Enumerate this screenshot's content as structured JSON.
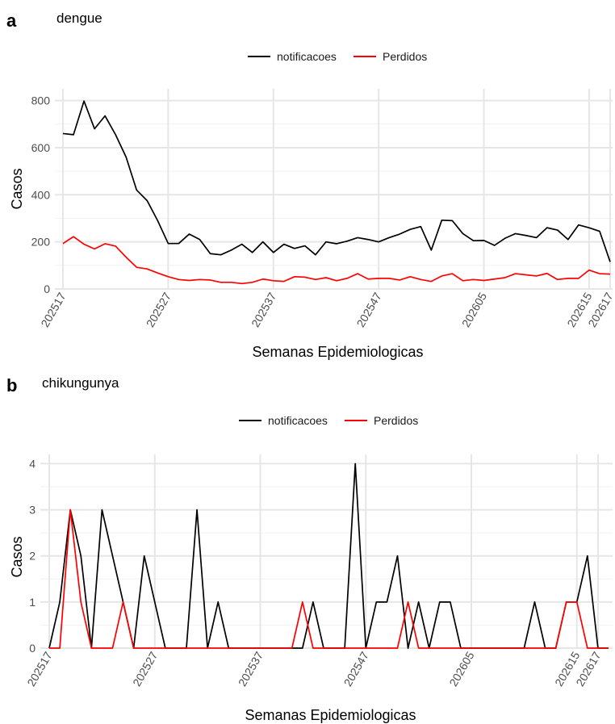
{
  "chart_data": [
    {
      "panel_letter": "a",
      "title": "dengue",
      "type": "line",
      "xlabel": "Semanas Epidemiologicas",
      "ylabel": "Casos",
      "ylim": [
        0,
        850
      ],
      "y_ticks": [
        0,
        200,
        400,
        600,
        800
      ],
      "x_ticks": [
        "202517",
        "202527",
        "202537",
        "202547",
        "202605",
        "202615",
        "202617"
      ],
      "grid": true,
      "legend_position": "top",
      "series": [
        {
          "name": "notificacoes",
          "color": "#000000",
          "values": [
            660,
            655,
            798,
            680,
            735,
            655,
            560,
            420,
            375,
            290,
            193,
            193,
            233,
            210,
            150,
            145,
            165,
            190,
            155,
            200,
            155,
            190,
            172,
            183,
            145,
            200,
            192,
            203,
            218,
            210,
            200,
            218,
            233,
            253,
            265,
            165,
            292,
            290,
            235,
            205,
            206,
            185,
            215,
            235,
            227,
            218,
            260,
            250,
            210,
            272,
            260,
            245,
            115
          ]
        },
        {
          "name": "Perdidos",
          "color": "#ff0000",
          "values": [
            193,
            222,
            190,
            170,
            192,
            182,
            135,
            92,
            85,
            68,
            52,
            40,
            36,
            40,
            38,
            28,
            28,
            23,
            28,
            42,
            35,
            32,
            52,
            50,
            40,
            48,
            35,
            45,
            65,
            42,
            45,
            45,
            38,
            52,
            40,
            32,
            55,
            65,
            35,
            40,
            36,
            42,
            48,
            65,
            60,
            55,
            66,
            40,
            45,
            45,
            80,
            65,
            63
          ]
        }
      ]
    },
    {
      "panel_letter": "b",
      "title": "chikungunya",
      "type": "line",
      "xlabel": "Semanas Epidemiologicas",
      "ylabel": "Casos",
      "ylim": [
        0,
        4.2
      ],
      "y_ticks": [
        0,
        1,
        2,
        3,
        4
      ],
      "x_ticks": [
        "202517",
        "202527",
        "202537",
        "202547",
        "202605",
        "202615",
        "202617"
      ],
      "grid": true,
      "legend_position": "top",
      "series": [
        {
          "name": "notificacoes",
          "color": "#000000",
          "values": [
            0,
            1,
            3,
            2,
            0,
            3,
            2,
            1,
            0,
            2,
            1,
            0,
            0,
            0,
            3,
            0,
            1,
            0,
            0,
            0,
            0,
            0,
            0,
            0,
            0,
            1,
            0,
            0,
            0,
            4,
            0,
            1,
            1,
            2,
            0,
            1,
            0,
            1,
            1,
            0,
            0,
            0,
            0,
            0,
            0,
            0,
            1,
            0,
            0,
            1,
            1,
            2,
            0,
            0
          ]
        },
        {
          "name": "Perdidos",
          "color": "#ff0000",
          "values": [
            0,
            0,
            3,
            1,
            0,
            0,
            0,
            1,
            0,
            0,
            0,
            0,
            0,
            0,
            0,
            0,
            0,
            0,
            0,
            0,
            0,
            0,
            0,
            0,
            1,
            0,
            0,
            0,
            0,
            0,
            0,
            0,
            0,
            0,
            1,
            0,
            0,
            0,
            0,
            0,
            0,
            0,
            0,
            0,
            0,
            0,
            0,
            0,
            0,
            1,
            1,
            0,
            0,
            0
          ]
        }
      ]
    }
  ]
}
